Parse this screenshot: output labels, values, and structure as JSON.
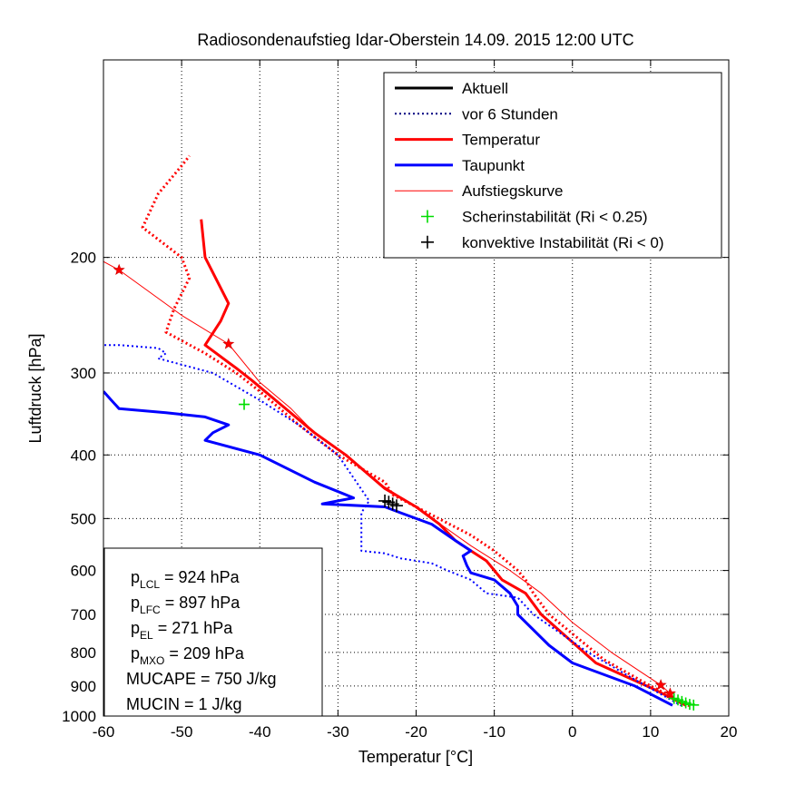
{
  "chart_data": {
    "type": "line",
    "title": "Radiosondenaufstieg Idar-Oberstein 14.09. 2015 12:00 UTC",
    "xlabel": "Temperatur [°C]",
    "ylabel": "Luftdruck [hPa]",
    "xlim": [
      -60,
      20
    ],
    "ylim": [
      1000,
      100
    ],
    "yscale": "log",
    "x_ticks": [
      "-60",
      "-50",
      "-40",
      "-30",
      "-20",
      "-10",
      "0",
      "10",
      "20"
    ],
    "y_ticks": [
      "200",
      "300",
      "400",
      "500",
      "600",
      "700",
      "800",
      "900",
      "1000"
    ],
    "grid": true,
    "legend_position": "top-right",
    "legend": [
      {
        "label": "Aktuell",
        "color": "#000000",
        "style": "solid",
        "width": 3
      },
      {
        "label": "vor 6 Stunden",
        "color": "#000080",
        "style": "dotted",
        "width": 2
      },
      {
        "label": "Temperatur",
        "color": "#ff0000",
        "style": "solid",
        "width": 3
      },
      {
        "label": "Taupunkt",
        "color": "#0000ff",
        "style": "solid",
        "width": 3
      },
      {
        "label": "Aufstiegskurve",
        "color": "#ff0000",
        "style": "solid",
        "width": 1
      },
      {
        "label": "Scherinstabilität (Ri < 0.25)",
        "color": "#00dd00",
        "marker": "+"
      },
      {
        "label": "konvektive Instabilität (Ri < 0)",
        "color": "#000000",
        "marker": "+"
      }
    ],
    "series": [
      {
        "name": "Temperatur",
        "color": "#ff0000",
        "style": "solid",
        "width": 3,
        "points": [
          [
            14.5,
            963
          ],
          [
            12,
            930
          ],
          [
            10,
            905
          ],
          [
            3,
            830
          ],
          [
            -4,
            700
          ],
          [
            -6,
            650
          ],
          [
            -9,
            620
          ],
          [
            -11,
            580
          ],
          [
            -13,
            560
          ],
          [
            -15,
            540
          ],
          [
            -17,
            510
          ],
          [
            -20,
            480
          ],
          [
            -24,
            450
          ],
          [
            -29,
            400
          ],
          [
            -33,
            370
          ],
          [
            -38,
            330
          ],
          [
            -41,
            308
          ],
          [
            -43,
            295
          ],
          [
            -47,
            272
          ],
          [
            -45,
            250
          ],
          [
            -44,
            235
          ],
          [
            -47,
            200
          ],
          [
            -47.5,
            175
          ]
        ]
      },
      {
        "name": "Taupunkt",
        "color": "#0000ff",
        "style": "solid",
        "width": 3,
        "points": [
          [
            12.8,
            963
          ],
          [
            8,
            900
          ],
          [
            0,
            830
          ],
          [
            -3,
            780
          ],
          [
            -7,
            700
          ],
          [
            -7,
            680
          ],
          [
            -8,
            650
          ],
          [
            -10,
            620
          ],
          [
            -13,
            605
          ],
          [
            -13.5,
            590
          ],
          [
            -14,
            570
          ],
          [
            -13,
            560
          ],
          [
            -15,
            540
          ],
          [
            -18,
            510
          ],
          [
            -22,
            490
          ],
          [
            -24,
            480
          ],
          [
            -32,
            475
          ],
          [
            -28,
            465
          ],
          [
            -33,
            440
          ],
          [
            -40,
            400
          ],
          [
            -47,
            380
          ],
          [
            -46,
            370
          ],
          [
            -44,
            360
          ],
          [
            -47,
            350
          ],
          [
            -52,
            345
          ],
          [
            -58,
            340
          ],
          [
            -59,
            330
          ],
          [
            -60,
            320
          ]
        ]
      },
      {
        "name": "vor 6 Stunden Temperatur",
        "color": "#ff0000",
        "style": "dotted",
        "width": 3,
        "points": [
          [
            15,
            965
          ],
          [
            10,
            900
          ],
          [
            4,
            820
          ],
          [
            -3,
            700
          ],
          [
            -5,
            650
          ],
          [
            -6,
            620
          ],
          [
            -7,
            600
          ],
          [
            -10,
            560
          ],
          [
            -13,
            530
          ],
          [
            -20,
            480
          ],
          [
            -23,
            460
          ],
          [
            -24,
            440
          ],
          [
            -30,
            400
          ],
          [
            -35,
            360
          ],
          [
            -40,
            320
          ],
          [
            -43,
            300
          ],
          [
            -47,
            280
          ],
          [
            -52,
            260
          ],
          [
            -51,
            240
          ],
          [
            -49,
            215
          ],
          [
            -50,
            200
          ],
          [
            -55,
            180
          ],
          [
            -53,
            160
          ],
          [
            -50,
            145
          ],
          [
            -49,
            140
          ]
        ]
      },
      {
        "name": "vor 6 Stunden Taupunkt",
        "color": "#0000ff",
        "style": "dotted",
        "width": 2,
        "points": [
          [
            14,
            965
          ],
          [
            8,
            880
          ],
          [
            2,
            800
          ],
          [
            -5,
            700
          ],
          [
            -7,
            660
          ],
          [
            -11,
            650
          ],
          [
            -13,
            620
          ],
          [
            -16,
            600
          ],
          [
            -18,
            585
          ],
          [
            -22,
            575
          ],
          [
            -24,
            565
          ],
          [
            -27,
            560
          ],
          [
            -27,
            490
          ],
          [
            -26,
            470
          ],
          [
            -30,
            400
          ],
          [
            -35,
            360
          ],
          [
            -40,
            330
          ],
          [
            -46,
            300
          ],
          [
            -53,
            285
          ],
          [
            -52,
            280
          ],
          [
            -53,
            275
          ],
          [
            -58,
            272
          ],
          [
            -60,
            272
          ]
        ]
      },
      {
        "name": "Aufstiegskurve",
        "color": "#ff0000",
        "style": "solid",
        "width": 1,
        "points": [
          [
            14,
            963
          ],
          [
            12.5,
            924
          ],
          [
            11.3,
            897
          ],
          [
            5,
            800
          ],
          [
            0,
            720
          ],
          [
            -4,
            650
          ],
          [
            -8,
            600
          ],
          [
            -13,
            550
          ],
          [
            -20,
            480
          ],
          [
            -25,
            440
          ],
          [
            -29,
            400
          ],
          [
            -33,
            370
          ],
          [
            -36,
            340
          ],
          [
            -40,
            310
          ],
          [
            -44,
            271
          ],
          [
            -50,
            245
          ],
          [
            -58,
            209
          ],
          [
            -61,
            200
          ]
        ]
      }
    ],
    "markers": {
      "stars": [
        [
          12.5,
          924
        ],
        [
          11.3,
          897
        ],
        [
          -44,
          271
        ],
        [
          -58,
          209
        ]
      ],
      "scherinstabilitaet": [
        [
          13,
          940
        ],
        [
          13.5,
          945
        ],
        [
          14,
          950
        ],
        [
          14.5,
          955
        ],
        [
          15,
          960
        ],
        [
          15.5,
          962
        ],
        [
          -42,
          335
        ]
      ],
      "konvektive_instabilitaet": [
        [
          -24,
          470
        ],
        [
          -23.5,
          472
        ],
        [
          -23,
          475
        ],
        [
          -22.5,
          478
        ]
      ]
    },
    "info_box": [
      {
        "prefix": "p",
        "sub": "LCL",
        "rest": " = 924 hPa"
      },
      {
        "prefix": "p",
        "sub": "LFC",
        "rest": " = 897 hPa"
      },
      {
        "prefix": "p",
        "sub": "EL",
        "rest": " = 271 hPa"
      },
      {
        "prefix": "p",
        "sub": "MXO",
        "rest": " = 209 hPa"
      },
      {
        "prefix": "MUCAPE = 750 J/kg",
        "sub": "",
        "rest": ""
      },
      {
        "prefix": "MUCIN = 1 J/kg",
        "sub": "",
        "rest": ""
      }
    ]
  }
}
